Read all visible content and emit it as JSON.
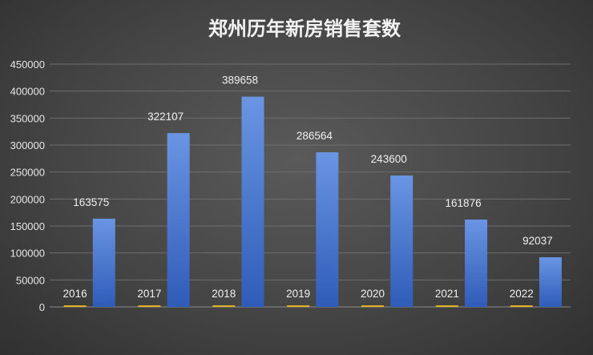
{
  "chart_data": {
    "type": "bar",
    "title": "郑州历年新房销售套数",
    "yticks": [
      "0",
      "50000",
      "100000",
      "150000",
      "200000",
      "250000",
      "300000",
      "350000",
      "400000",
      "450000"
    ],
    "ylim": [
      0,
      450000
    ],
    "grid": true,
    "legend": "none",
    "series": [
      {
        "values": [
          0,
          0,
          0,
          0,
          0,
          0,
          0
        ],
        "labels": [
          "2016",
          "2017",
          "2018",
          "2019",
          "2020",
          "2021",
          "2022"
        ],
        "color": "#E0B020"
      },
      {
        "values": [
          163575,
          322107,
          389658,
          286564,
          243600,
          161876,
          92037
        ],
        "labels": [
          "163575",
          "322107",
          "389658",
          "286564",
          "243600",
          "161876",
          "92037"
        ],
        "color": "#4472C4"
      }
    ]
  }
}
